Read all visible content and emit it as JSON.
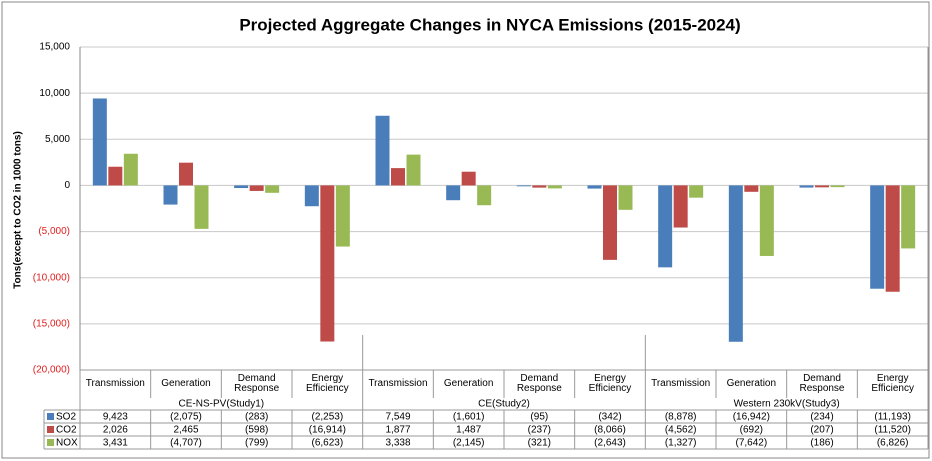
{
  "chart_data": {
    "type": "bar",
    "title": "Projected Aggregate Changes in NYCA Emissions (2015-2024)",
    "y_label": "Tons(except to CO2 in 1000 tons)",
    "groups": [
      "CE-NS-PV(Study1)",
      "CE(Study2)",
      "Western 230kV(Study3)"
    ],
    "categories": [
      "Transmission",
      "Generation",
      "Demand Response",
      "Energy Efficiency",
      "Transmission",
      "Generation",
      "Demand Response",
      "Energy Efficiency",
      "Transmission",
      "Generation",
      "Demand Response",
      "Energy Efficiency"
    ],
    "series": [
      {
        "name": "SO2",
        "color": "#4a7ebb",
        "values": [
          9423,
          -2075,
          -283,
          -2253,
          7549,
          -1601,
          -95,
          -342,
          -8878,
          -16942,
          -234,
          -11193
        ],
        "value_labels": [
          "9,423",
          "(2,075)",
          "(283)",
          "(2,253)",
          "7,549",
          "(1,601)",
          "(95)",
          "(342)",
          "(8,878)",
          "(16,942)",
          "(234)",
          "(11,193)"
        ]
      },
      {
        "name": "CO2",
        "color": "#be4b48",
        "values": [
          2026,
          2465,
          -598,
          -16914,
          1877,
          1487,
          -237,
          -8066,
          -4562,
          -692,
          -207,
          -11520
        ],
        "value_labels": [
          "2,026",
          "2,465",
          "(598)",
          "(16,914)",
          "1,877",
          "1,487",
          "(237)",
          "(8,066)",
          "(4,562)",
          "(692)",
          "(207)",
          "(11,520)"
        ]
      },
      {
        "name": "NOX",
        "color": "#98b954",
        "values": [
          3431,
          -4707,
          -799,
          -6623,
          3338,
          -2145,
          -321,
          -2643,
          -1327,
          -7642,
          -186,
          -6826
        ],
        "value_labels": [
          "3,431",
          "(4,707)",
          "(799)",
          "(6,623)",
          "3,338",
          "(2,145)",
          "(321)",
          "(2,643)",
          "(1,327)",
          "(7,642)",
          "(186)",
          "(6,826)"
        ]
      }
    ],
    "ylim": [
      -20000,
      15000
    ],
    "yticks": [
      {
        "value": -20000,
        "label": "(20,000)"
      },
      {
        "value": -15000,
        "label": "(15,000)"
      },
      {
        "value": -10000,
        "label": "(10,000)"
      },
      {
        "value": -5000,
        "label": "(5,000)"
      },
      0,
      {
        "value": 5000,
        "label": "5,000"
      },
      {
        "value": 10000,
        "label": "10,000"
      },
      {
        "value": 15000,
        "label": "15,000"
      }
    ],
    "grid": true
  }
}
